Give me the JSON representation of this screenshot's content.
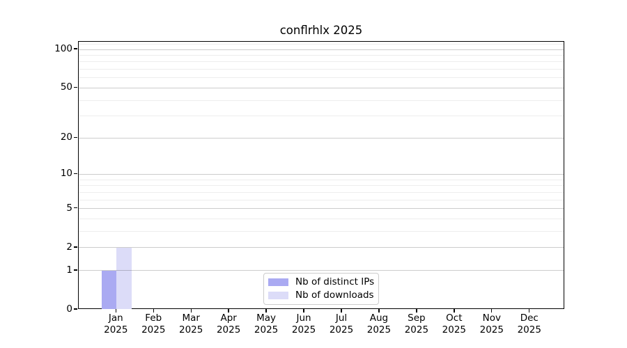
{
  "chart_data": {
    "type": "bar",
    "title": "conflrhlx 2025",
    "categories": [
      "Jan 2025",
      "Feb 2025",
      "Mar 2025",
      "Apr 2025",
      "May 2025",
      "Jun 2025",
      "Jul 2025",
      "Aug 2025",
      "Sep 2025",
      "Oct 2025",
      "Nov 2025",
      "Dec 2025"
    ],
    "series": [
      {
        "name": "Nb of distinct IPs",
        "color": "#aaaaf2",
        "values": [
          1,
          0,
          0,
          0,
          0,
          0,
          0,
          0,
          0,
          0,
          0,
          0
        ]
      },
      {
        "name": "Nb of downloads",
        "color": "#dcdcf8",
        "values": [
          2,
          0,
          0,
          0,
          0,
          0,
          0,
          0,
          0,
          0,
          0,
          0
        ]
      }
    ],
    "yscale": "log1p",
    "ylim": [
      0,
      114
    ],
    "yticks": [
      0,
      1,
      2,
      5,
      10,
      20,
      50,
      100
    ],
    "minor_yticks": [
      3,
      4,
      6,
      7,
      8,
      9,
      30,
      40,
      60,
      70,
      80,
      90,
      110
    ],
    "grid": "horizontal",
    "legend_position": "lower center"
  }
}
